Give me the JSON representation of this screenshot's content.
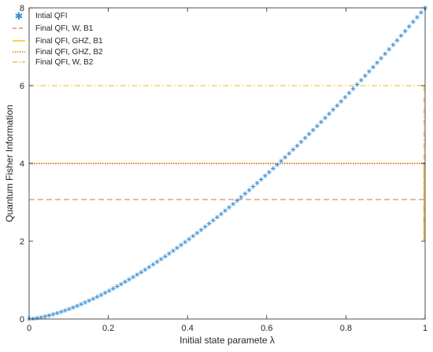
{
  "chart_data": {
    "type": "line",
    "title": "",
    "xlabel": "Initial state paramete λ",
    "ylabel": "Quantum Fisher Information",
    "xlim": [
      0,
      1
    ],
    "ylim": [
      0,
      8
    ],
    "x_ticks": [
      "0",
      "0.2",
      "0.4",
      "0.6",
      "0.8",
      "1"
    ],
    "y_ticks": [
      "0",
      "2",
      "4",
      "6",
      "8"
    ],
    "grid": false,
    "legend_position": "top-left",
    "series": [
      {
        "name": "Intial QFI",
        "style": "markers-asterisk",
        "color": "#3a8fd4",
        "formula": "y = 8 * x^1.5",
        "x_start": 0,
        "x_end": 1,
        "count": 100
      },
      {
        "name": "Final QFI, W, B1",
        "style": "dashed",
        "color": "#e8896b",
        "y": 3.07,
        "x_range": [
          0,
          1
        ],
        "vertical_at_x": 1,
        "vertical_from_y": 2.02
      },
      {
        "name": "Final QFI, GHZ, B1",
        "style": "solid",
        "color": "#f2c100",
        "y": 4.0,
        "x_range": [
          0.995,
          1
        ],
        "vertical_at_x": 1,
        "vertical_from_y": 2.02
      },
      {
        "name": "Final QFI, GHZ, B2",
        "style": "dotted",
        "color": "#e07800",
        "y": 4.0,
        "x_range": [
          0,
          1
        ],
        "vertical_at_x": 1,
        "vertical_from_y": 2.02
      },
      {
        "name": "Final QFI, W, B2",
        "style": "dashdot",
        "color": "#f2c14a",
        "y": 6.0,
        "x_range": [
          0,
          1
        ],
        "vertical_at_x": 1,
        "vertical_from_y": 2.02
      }
    ]
  }
}
